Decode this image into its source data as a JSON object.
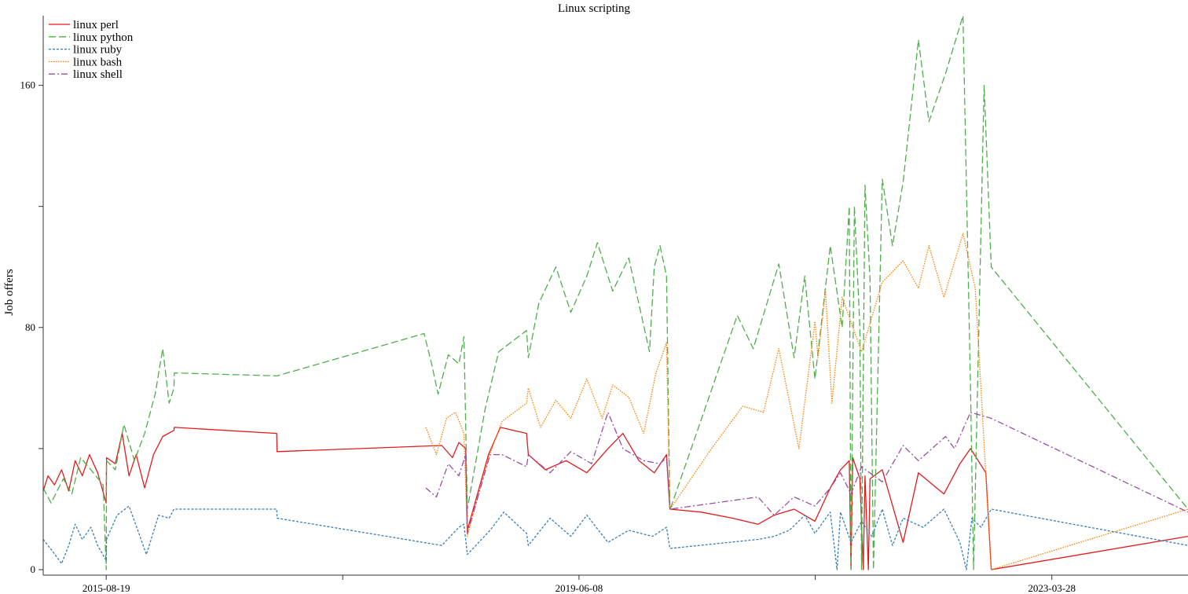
{
  "chart_data": {
    "type": "line",
    "title": "Linux scripting",
    "xlabel": "",
    "ylabel": "Job offers",
    "x_ticks": [
      "2015-08-19",
      "2017-07-14",
      "2019-06-08",
      "2021-05-02",
      "2023-03-28"
    ],
    "x_tick_labels": [
      "2015-08-19",
      "",
      "2019-06-08",
      "",
      "2023-03-28"
    ],
    "xlim": [
      "2015-02-15",
      "2024-05-01"
    ],
    "ylim": [
      0,
      183
    ],
    "y_ticks": [
      0,
      40,
      80,
      120,
      160
    ],
    "y_tick_labels": [
      "0",
      "",
      "80",
      "",
      "160"
    ],
    "grid": false,
    "legend": "top-left",
    "series": [
      {
        "name": "linux perl",
        "color": "#e41a1c",
        "dash": "solid",
        "points": [
          [
            "2015-02-15",
            26
          ],
          [
            "2015-03-01",
            31
          ],
          [
            "2015-03-20",
            28
          ],
          [
            "2015-04-10",
            33
          ],
          [
            "2015-05-01",
            26
          ],
          [
            "2015-05-20",
            36
          ],
          [
            "2015-06-10",
            31
          ],
          [
            "2015-07-01",
            38
          ],
          [
            "2015-07-25",
            32
          ],
          [
            "2015-08-19",
            22
          ],
          [
            "2015-08-20",
            37
          ],
          [
            "2015-09-15",
            35
          ],
          [
            "2015-10-05",
            45
          ],
          [
            "2015-10-25",
            31
          ],
          [
            "2015-11-15",
            38
          ],
          [
            "2015-12-10",
            27
          ],
          [
            "2016-01-05",
            38
          ],
          [
            "2016-02-01",
            44
          ],
          [
            "2016-03-05",
            46
          ],
          [
            "2016-03-06",
            47
          ],
          [
            "2017-01-01",
            45
          ],
          [
            "2017-01-02",
            39
          ],
          [
            "2018-05-01",
            41
          ],
          [
            "2018-06-01",
            37
          ],
          [
            "2018-06-20",
            42
          ],
          [
            "2018-07-10",
            40
          ],
          [
            "2018-07-15",
            13
          ],
          [
            "2018-09-15",
            38
          ],
          [
            "2018-10-20",
            47
          ],
          [
            "2019-01-05",
            45
          ],
          [
            "2019-01-10",
            38
          ],
          [
            "2019-03-01",
            33
          ],
          [
            "2019-05-01",
            36
          ],
          [
            "2019-07-01",
            32
          ],
          [
            "2019-09-01",
            40
          ],
          [
            "2019-10-15",
            45
          ],
          [
            "2019-12-01",
            36
          ],
          [
            "2020-01-15",
            32
          ],
          [
            "2020-02-20",
            38
          ],
          [
            "2020-03-01",
            20
          ],
          [
            "2020-03-02",
            20
          ],
          [
            "2020-06-01",
            19
          ],
          [
            "2020-09-01",
            17
          ],
          [
            "2020-11-15",
            15
          ],
          [
            "2021-01-01",
            18
          ],
          [
            "2021-03-01",
            20
          ],
          [
            "2021-05-01",
            16
          ],
          [
            "2021-06-15",
            27
          ],
          [
            "2021-07-15",
            33
          ],
          [
            "2021-08-10",
            36
          ],
          [
            "2021-08-15",
            0
          ],
          [
            "2021-08-20",
            37
          ],
          [
            "2021-09-10",
            30
          ],
          [
            "2021-09-20",
            0
          ],
          [
            "2021-09-25",
            31
          ],
          [
            "2021-10-05",
            0
          ],
          [
            "2021-10-10",
            30
          ],
          [
            "2021-11-15",
            33
          ],
          [
            "2022-01-15",
            9
          ],
          [
            "2022-03-01",
            32
          ],
          [
            "2022-05-15",
            25
          ],
          [
            "2022-07-01",
            35
          ],
          [
            "2022-08-01",
            40
          ],
          [
            "2022-09-15",
            32
          ],
          [
            "2022-10-01",
            0
          ],
          [
            "2024-05-01",
            11
          ]
        ]
      },
      {
        "name": "linux python",
        "color": "#4daf4a",
        "dash": "long-dash",
        "points": [
          [
            "2015-02-15",
            27
          ],
          [
            "2015-03-10",
            22
          ],
          [
            "2015-04-15",
            30
          ],
          [
            "2015-05-10",
            25
          ],
          [
            "2015-06-05",
            37
          ],
          [
            "2015-07-05",
            33
          ],
          [
            "2015-08-10",
            28
          ],
          [
            "2015-08-19",
            0
          ],
          [
            "2015-08-20",
            36
          ],
          [
            "2015-09-15",
            33
          ],
          [
            "2015-10-10",
            48
          ],
          [
            "2015-11-10",
            36
          ],
          [
            "2015-12-10",
            45
          ],
          [
            "2016-01-10",
            58
          ],
          [
            "2016-02-01",
            73
          ],
          [
            "2016-02-20",
            55
          ],
          [
            "2016-03-05",
            60
          ],
          [
            "2016-03-06",
            65
          ],
          [
            "2017-01-01",
            64
          ],
          [
            "2017-01-02",
            64
          ],
          [
            "2018-03-10",
            78
          ],
          [
            "2018-04-01",
            68
          ],
          [
            "2018-04-20",
            58
          ],
          [
            "2018-05-20",
            71
          ],
          [
            "2018-06-20",
            68
          ],
          [
            "2018-07-05",
            77
          ],
          [
            "2018-07-15",
            20
          ],
          [
            "2018-09-05",
            53
          ],
          [
            "2018-10-15",
            72
          ],
          [
            "2019-01-05",
            79
          ],
          [
            "2019-01-10",
            70
          ],
          [
            "2019-02-10",
            88
          ],
          [
            "2019-04-01",
            100
          ],
          [
            "2019-05-15",
            85
          ],
          [
            "2019-07-01",
            97
          ],
          [
            "2019-08-01",
            108
          ],
          [
            "2019-09-15",
            92
          ],
          [
            "2019-11-01",
            103
          ],
          [
            "2020-01-01",
            72
          ],
          [
            "2020-01-15",
            100
          ],
          [
            "2020-02-01",
            107
          ],
          [
            "2020-02-20",
            97
          ],
          [
            "2020-03-01",
            20
          ],
          [
            "2020-03-02",
            20
          ],
          [
            "2020-09-15",
            84
          ],
          [
            "2020-11-01",
            73
          ],
          [
            "2021-01-15",
            101
          ],
          [
            "2021-03-01",
            70
          ],
          [
            "2021-04-01",
            97
          ],
          [
            "2021-05-01",
            63
          ],
          [
            "2021-06-15",
            107
          ],
          [
            "2021-07-20",
            80
          ],
          [
            "2021-08-10",
            120
          ],
          [
            "2021-08-15",
            0
          ],
          [
            "2021-08-25",
            120
          ],
          [
            "2021-09-10",
            80
          ],
          [
            "2021-09-15",
            0
          ],
          [
            "2021-09-25",
            127
          ],
          [
            "2021-10-10",
            96
          ],
          [
            "2021-10-20",
            0
          ],
          [
            "2021-11-15",
            129
          ],
          [
            "2021-12-15",
            107
          ],
          [
            "2022-01-15",
            128
          ],
          [
            "2022-03-01",
            175
          ],
          [
            "2022-04-01",
            148
          ],
          [
            "2022-05-20",
            164
          ],
          [
            "2022-07-10",
            183
          ],
          [
            "2022-08-01",
            60
          ],
          [
            "2022-08-10",
            0
          ],
          [
            "2022-09-10",
            160
          ],
          [
            "2022-10-01",
            100
          ],
          [
            "2024-05-01",
            20
          ]
        ]
      },
      {
        "name": "linux ruby",
        "color": "#377eb8",
        "dash": "short-dash",
        "points": [
          [
            "2015-02-15",
            10
          ],
          [
            "2015-03-15",
            6
          ],
          [
            "2015-04-10",
            2
          ],
          [
            "2015-05-01",
            8
          ],
          [
            "2015-05-20",
            15
          ],
          [
            "2015-06-10",
            10
          ],
          [
            "2015-07-05",
            14
          ],
          [
            "2015-07-25",
            8
          ],
          [
            "2015-08-19",
            3
          ],
          [
            "2015-08-20",
            10
          ],
          [
            "2015-09-20",
            18
          ],
          [
            "2015-10-25",
            21
          ],
          [
            "2015-11-20",
            13
          ],
          [
            "2015-12-15",
            5
          ],
          [
            "2016-01-20",
            18
          ],
          [
            "2016-02-20",
            17
          ],
          [
            "2016-03-05",
            20
          ],
          [
            "2016-03-06",
            20
          ],
          [
            "2017-01-01",
            20
          ],
          [
            "2017-01-02",
            17
          ],
          [
            "2018-05-01",
            8
          ],
          [
            "2018-06-20",
            14
          ],
          [
            "2018-07-05",
            15
          ],
          [
            "2018-07-15",
            5
          ],
          [
            "2018-09-20",
            13
          ],
          [
            "2018-10-30",
            19
          ],
          [
            "2019-01-05",
            12
          ],
          [
            "2019-01-10",
            8
          ],
          [
            "2019-03-15",
            17
          ],
          [
            "2019-05-15",
            11
          ],
          [
            "2019-07-01",
            18
          ],
          [
            "2019-09-01",
            9
          ],
          [
            "2019-11-01",
            13
          ],
          [
            "2020-01-10",
            11
          ],
          [
            "2020-02-20",
            14
          ],
          [
            "2020-03-01",
            7
          ],
          [
            "2020-03-02",
            7
          ],
          [
            "2020-11-15",
            10
          ],
          [
            "2021-01-01",
            11
          ],
          [
            "2021-02-15",
            13
          ],
          [
            "2021-04-01",
            18
          ],
          [
            "2021-05-01",
            12
          ],
          [
            "2021-06-15",
            19
          ],
          [
            "2021-07-05",
            0
          ],
          [
            "2021-07-15",
            19
          ],
          [
            "2021-08-15",
            9
          ],
          [
            "2021-09-15",
            16
          ],
          [
            "2021-10-15",
            11
          ],
          [
            "2021-11-15",
            20
          ],
          [
            "2021-12-15",
            8
          ],
          [
            "2022-01-15",
            17
          ],
          [
            "2022-03-15",
            14
          ],
          [
            "2022-05-15",
            20
          ],
          [
            "2022-07-01",
            9
          ],
          [
            "2022-07-20",
            0
          ],
          [
            "2022-08-05",
            17
          ],
          [
            "2022-09-01",
            14
          ],
          [
            "2022-10-01",
            20
          ],
          [
            "2024-05-01",
            8
          ]
        ]
      },
      {
        "name": "linux bash",
        "color": "#ff7f00",
        "dash": "dotted",
        "points": [
          [
            "2018-03-15",
            47
          ],
          [
            "2018-04-15",
            38
          ],
          [
            "2018-05-15",
            50
          ],
          [
            "2018-06-10",
            52
          ],
          [
            "2018-07-05",
            45
          ],
          [
            "2018-07-15",
            11
          ],
          [
            "2018-09-15",
            37
          ],
          [
            "2018-10-25",
            49
          ],
          [
            "2019-01-05",
            55
          ],
          [
            "2019-01-10",
            60
          ],
          [
            "2019-02-15",
            47
          ],
          [
            "2019-04-01",
            56
          ],
          [
            "2019-05-15",
            50
          ],
          [
            "2019-07-01",
            63
          ],
          [
            "2019-08-15",
            50
          ],
          [
            "2019-09-15",
            61
          ],
          [
            "2019-11-01",
            57
          ],
          [
            "2019-12-15",
            45
          ],
          [
            "2020-01-20",
            65
          ],
          [
            "2020-02-20",
            75
          ],
          [
            "2020-03-01",
            20
          ],
          [
            "2020-03-02",
            20
          ],
          [
            "2020-07-01",
            40
          ],
          [
            "2020-10-01",
            54
          ],
          [
            "2020-12-01",
            52
          ],
          [
            "2021-01-15",
            73
          ],
          [
            "2021-03-15",
            40
          ],
          [
            "2021-05-01",
            82
          ],
          [
            "2021-05-10",
            70
          ],
          [
            "2021-06-01",
            92
          ],
          [
            "2021-06-20",
            55
          ],
          [
            "2021-07-20",
            90
          ],
          [
            "2021-09-15",
            72
          ],
          [
            "2021-11-15",
            95
          ],
          [
            "2022-01-15",
            102
          ],
          [
            "2022-03-01",
            93
          ],
          [
            "2022-04-01",
            107
          ],
          [
            "2022-05-15",
            90
          ],
          [
            "2022-07-10",
            111
          ],
          [
            "2022-08-15",
            93
          ],
          [
            "2022-10-01",
            0
          ],
          [
            "2024-05-01",
            20
          ]
        ]
      },
      {
        "name": "linux shell",
        "color": "#984ea3",
        "dash": "dash-dot",
        "points": [
          [
            "2018-03-15",
            27
          ],
          [
            "2018-04-15",
            24
          ],
          [
            "2018-05-20",
            35
          ],
          [
            "2018-06-20",
            31
          ],
          [
            "2018-07-10",
            38
          ],
          [
            "2018-07-15",
            12
          ],
          [
            "2018-09-20",
            38
          ],
          [
            "2018-10-25",
            38
          ],
          [
            "2019-01-05",
            34
          ],
          [
            "2019-01-10",
            38
          ],
          [
            "2019-03-15",
            32
          ],
          [
            "2019-05-15",
            39
          ],
          [
            "2019-07-15",
            35
          ],
          [
            "2019-09-01",
            52
          ],
          [
            "2019-10-15",
            40
          ],
          [
            "2019-12-15",
            36
          ],
          [
            "2020-02-01",
            35
          ],
          [
            "2020-02-20",
            37
          ],
          [
            "2020-03-01",
            20
          ],
          [
            "2020-03-02",
            20
          ],
          [
            "2020-11-15",
            24
          ],
          [
            "2021-01-01",
            18
          ],
          [
            "2021-03-01",
            24
          ],
          [
            "2021-05-01",
            21
          ],
          [
            "2021-06-15",
            27
          ],
          [
            "2021-07-15",
            32
          ],
          [
            "2021-08-15",
            25
          ],
          [
            "2021-09-15",
            34
          ],
          [
            "2021-11-15",
            29
          ],
          [
            "2022-01-15",
            41
          ],
          [
            "2022-03-01",
            36
          ],
          [
            "2022-05-20",
            44
          ],
          [
            "2022-06-15",
            40
          ],
          [
            "2022-08-01",
            52
          ],
          [
            "2022-10-01",
            50
          ],
          [
            "2024-05-01",
            19
          ]
        ]
      }
    ]
  }
}
